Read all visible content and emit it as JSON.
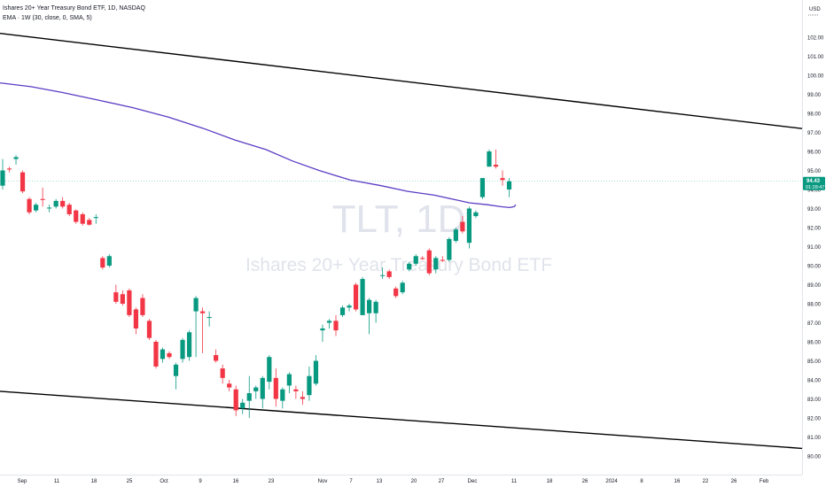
{
  "header": {
    "title": "Ishares 20+ Year Treasury Bond ETF, 1D, NASDAQ",
    "indicator": "EMA · 1W (30, close, 0, SMA, 5)"
  },
  "watermark": {
    "symbol": "TLT, 1D",
    "name": "Ishares 20+ Year Treasury Bond ETF"
  },
  "price_axis": {
    "currency": "USD",
    "last_price": "94.43",
    "countdown": "01:28:47"
  },
  "colors": {
    "up": "#089981",
    "down": "#f23645",
    "ema": "#5b3cc4",
    "trendline": "#000000",
    "price_line": "#26a69a"
  },
  "chart_data": {
    "type": "candlestick",
    "title": "Ishares 20+ Year Treasury Bond ETF, 1D, NASDAQ",
    "x_tick_labels": [
      "Sep",
      "11",
      "18",
      "25",
      "Oct",
      "9",
      "16",
      "23",
      "Nov",
      "7",
      "13",
      "20",
      "27",
      "Dec",
      "11",
      "18",
      "26",
      "2024",
      "8",
      "16",
      "22",
      "26",
      "Feb"
    ],
    "y_tick_labels": [
      "80.00",
      "81.00",
      "82.00",
      "83.00",
      "84.00",
      "85.00",
      "86.00",
      "87.00",
      "88.00",
      "89.00",
      "90.00",
      "91.00",
      "92.00",
      "93.00",
      "94.00",
      "95.00",
      "96.00",
      "97.00",
      "98.00",
      "99.00",
      "100.00",
      "101.00",
      "102.00"
    ],
    "ylim": [
      79.7,
      103.7
    ],
    "last_price": 94.43,
    "candles": [
      {
        "o": 94.2,
        "h": 95.6,
        "l": 94.0,
        "c": 95.0
      },
      {
        "o": 95.1,
        "h": 95.2,
        "l": 94.9,
        "c": 95.05
      },
      {
        "o": 95.6,
        "h": 95.8,
        "l": 95.3,
        "c": 95.7
      },
      {
        "o": 94.9,
        "h": 95.0,
        "l": 93.8,
        "c": 93.9
      },
      {
        "o": 93.5,
        "h": 93.6,
        "l": 92.7,
        "c": 92.8
      },
      {
        "o": 92.9,
        "h": 93.3,
        "l": 92.8,
        "c": 93.2
      },
      {
        "o": 93.5,
        "h": 94.1,
        "l": 93.1,
        "c": 93.45
      },
      {
        "o": 93.0,
        "h": 93.2,
        "l": 92.8,
        "c": 93.05
      },
      {
        "o": 93.1,
        "h": 93.5,
        "l": 93.0,
        "c": 93.4
      },
      {
        "o": 93.4,
        "h": 93.6,
        "l": 93.0,
        "c": 93.1
      },
      {
        "o": 93.2,
        "h": 93.3,
        "l": 92.6,
        "c": 92.7
      },
      {
        "o": 92.9,
        "h": 92.95,
        "l": 92.2,
        "c": 92.3
      },
      {
        "o": 92.7,
        "h": 92.8,
        "l": 92.1,
        "c": 92.2
      },
      {
        "o": 92.4,
        "h": 92.5,
        "l": 92.1,
        "c": 92.15
      },
      {
        "o": 92.5,
        "h": 92.7,
        "l": 92.2,
        "c": 92.55
      },
      {
        "o": 90.4,
        "h": 90.5,
        "l": 89.8,
        "c": 89.9
      },
      {
        "o": 90.0,
        "h": 90.6,
        "l": 89.9,
        "c": 90.5
      },
      {
        "o": 88.6,
        "h": 89.0,
        "l": 88.0,
        "c": 88.1
      },
      {
        "o": 88.5,
        "h": 88.7,
        "l": 87.9,
        "c": 88.0
      },
      {
        "o": 88.7,
        "h": 88.8,
        "l": 87.3,
        "c": 87.4
      },
      {
        "o": 87.7,
        "h": 87.8,
        "l": 86.4,
        "c": 86.7
      },
      {
        "o": 88.3,
        "h": 88.5,
        "l": 87.3,
        "c": 87.4
      },
      {
        "o": 87.1,
        "h": 87.2,
        "l": 86.1,
        "c": 86.2
      },
      {
        "o": 86.0,
        "h": 86.1,
        "l": 84.6,
        "c": 84.7
      },
      {
        "o": 85.1,
        "h": 85.7,
        "l": 84.9,
        "c": 85.6
      },
      {
        "o": 85.4,
        "h": 85.5,
        "l": 85.1,
        "c": 85.2
      },
      {
        "o": 84.2,
        "h": 84.9,
        "l": 83.5,
        "c": 84.8
      },
      {
        "o": 85.1,
        "h": 86.2,
        "l": 84.9,
        "c": 86.1
      },
      {
        "o": 85.2,
        "h": 86.6,
        "l": 85.0,
        "c": 86.5
      },
      {
        "o": 87.6,
        "h": 88.4,
        "l": 85.2,
        "c": 88.3
      },
      {
        "o": 87.6,
        "h": 87.8,
        "l": 85.4,
        "c": 87.5
      },
      {
        "o": 87.3,
        "h": 87.6,
        "l": 86.8,
        "c": 87.3
      },
      {
        "o": 85.3,
        "h": 85.6,
        "l": 84.9,
        "c": 85.0
      },
      {
        "o": 84.6,
        "h": 84.8,
        "l": 83.8,
        "c": 84.1
      },
      {
        "o": 83.8,
        "h": 84.0,
        "l": 83.4,
        "c": 83.6
      },
      {
        "o": 83.5,
        "h": 83.7,
        "l": 82.1,
        "c": 82.4
      },
      {
        "o": 82.5,
        "h": 83.0,
        "l": 82.2,
        "c": 82.8
      },
      {
        "o": 82.9,
        "h": 84.2,
        "l": 82.0,
        "c": 83.3
      },
      {
        "o": 83.4,
        "h": 83.7,
        "l": 83.0,
        "c": 83.6
      },
      {
        "o": 83.0,
        "h": 84.2,
        "l": 82.5,
        "c": 84.1
      },
      {
        "o": 83.9,
        "h": 85.3,
        "l": 83.5,
        "c": 85.2
      },
      {
        "o": 84.1,
        "h": 84.6,
        "l": 82.6,
        "c": 83.0
      },
      {
        "o": 82.9,
        "h": 83.6,
        "l": 82.5,
        "c": 83.5
      },
      {
        "o": 83.7,
        "h": 84.4,
        "l": 83.3,
        "c": 84.3
      },
      {
        "o": 83.5,
        "h": 83.7,
        "l": 83.0,
        "c": 83.4
      },
      {
        "o": 83.1,
        "h": 83.4,
        "l": 82.7,
        "c": 83.0
      },
      {
        "o": 83.2,
        "h": 84.7,
        "l": 82.9,
        "c": 84.2
      },
      {
        "o": 83.8,
        "h": 85.3,
        "l": 83.7,
        "c": 85.0
      },
      {
        "o": 86.6,
        "h": 86.9,
        "l": 86.0,
        "c": 86.7
      },
      {
        "o": 87.0,
        "h": 87.2,
        "l": 86.7,
        "c": 87.1
      },
      {
        "o": 87.1,
        "h": 87.4,
        "l": 86.3,
        "c": 86.6
      },
      {
        "o": 87.4,
        "h": 87.9,
        "l": 87.3,
        "c": 87.8
      },
      {
        "o": 87.8,
        "h": 88.0,
        "l": 87.6,
        "c": 87.9
      },
      {
        "o": 89.0,
        "h": 89.1,
        "l": 87.6,
        "c": 87.7
      },
      {
        "o": 87.4,
        "h": 89.4,
        "l": 87.4,
        "c": 89.3
      },
      {
        "o": 87.5,
        "h": 88.3,
        "l": 86.4,
        "c": 88.2
      },
      {
        "o": 87.5,
        "h": 88.2,
        "l": 87.0,
        "c": 88.1
      },
      {
        "o": 89.5,
        "h": 89.9,
        "l": 89.3,
        "c": 89.5
      },
      {
        "o": 89.7,
        "h": 89.8,
        "l": 89.3,
        "c": 89.4
      },
      {
        "o": 88.8,
        "h": 88.9,
        "l": 88.3,
        "c": 88.4
      },
      {
        "o": 88.6,
        "h": 89.2,
        "l": 88.5,
        "c": 89.1
      },
      {
        "o": 89.8,
        "h": 90.2,
        "l": 89.7,
        "c": 90.1
      },
      {
        "o": 90.1,
        "h": 90.6,
        "l": 90.0,
        "c": 90.5
      },
      {
        "o": 90.4,
        "h": 90.5,
        "l": 90.3,
        "c": 90.35
      },
      {
        "o": 90.8,
        "h": 90.9,
        "l": 89.5,
        "c": 89.6
      },
      {
        "o": 89.8,
        "h": 90.5,
        "l": 89.6,
        "c": 90.4
      },
      {
        "o": 90.3,
        "h": 90.5,
        "l": 90.2,
        "c": 90.25
      },
      {
        "o": 90.3,
        "h": 91.5,
        "l": 90.2,
        "c": 91.4
      },
      {
        "o": 91.3,
        "h": 92.0,
        "l": 91.2,
        "c": 91.9
      },
      {
        "o": 92.3,
        "h": 92.6,
        "l": 91.7,
        "c": 91.8
      },
      {
        "o": 91.2,
        "h": 93.1,
        "l": 90.9,
        "c": 93.0
      },
      {
        "o": 92.6,
        "h": 92.9,
        "l": 92.5,
        "c": 92.8
      },
      {
        "o": 93.6,
        "h": 94.6,
        "l": 93.5,
        "c": 94.6
      },
      {
        "o": 95.2,
        "h": 96.1,
        "l": 95.2,
        "c": 96.0
      },
      {
        "o": 95.3,
        "h": 96.1,
        "l": 95.1,
        "c": 95.2
      },
      {
        "o": 94.6,
        "h": 95.0,
        "l": 94.2,
        "c": 94.5
      },
      {
        "o": 94.0,
        "h": 94.6,
        "l": 93.6,
        "c": 94.43
      }
    ],
    "ema_series": [
      99.6,
      99.4,
      99.1,
      98.7,
      98.3,
      97.8,
      97.2,
      96.6,
      96.1,
      95.5,
      95.0,
      94.5,
      94.2,
      93.9,
      93.7,
      93.5,
      93.3,
      93.2,
      93.1,
      93.05,
      93.1,
      93.2
    ],
    "trendlines": [
      {
        "y_start": 102.2,
        "y_end": 97.2
      },
      {
        "y_start": 83.4,
        "y_end": 80.4
      }
    ]
  }
}
